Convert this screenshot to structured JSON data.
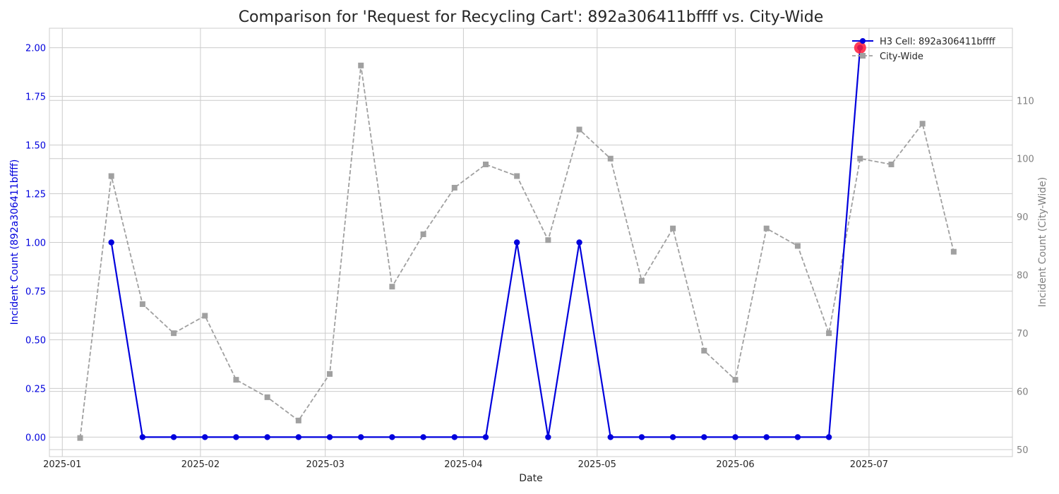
{
  "chart_data": {
    "type": "line",
    "title": "Comparison for 'Request for Recycling Cart': 892a306411bffff vs. City-Wide",
    "xlabel": "Date",
    "ylabel_left": "Incident Count (892a306411bffff)",
    "ylabel_right": "Incident Count (City-Wide)",
    "x_ticks": [
      "2025-01",
      "2025-02",
      "2025-03",
      "2025-04",
      "2025-05",
      "2025-06",
      "2025-07"
    ],
    "y_left_ticks": [
      "0.00",
      "0.25",
      "0.50",
      "0.75",
      "1.00",
      "1.25",
      "1.50",
      "1.75",
      "2.00"
    ],
    "y_right_ticks": [
      "50",
      "60",
      "70",
      "80",
      "90",
      "100",
      "110"
    ],
    "ylim_left": [
      -0.1,
      2.1
    ],
    "ylim_right": [
      48.8,
      122.4
    ],
    "grid": true,
    "legend_position": "top-right",
    "colors": {
      "h3": "#0000dd",
      "city": "#a0a0a0",
      "highlight": "#ff1a3a",
      "left_axis": "#0000dd",
      "right_axis": "#808080"
    },
    "series": [
      {
        "name": "H3 Cell: 892a306411bffff",
        "axis": "left",
        "style": "solid-circle",
        "x": [
          "2025-01-12",
          "2025-01-19",
          "2025-01-26",
          "2025-02-02",
          "2025-02-09",
          "2025-02-16",
          "2025-02-23",
          "2025-03-02",
          "2025-03-09",
          "2025-03-16",
          "2025-03-23",
          "2025-03-30",
          "2025-04-06",
          "2025-04-13",
          "2025-04-20",
          "2025-04-27",
          "2025-05-04",
          "2025-05-11",
          "2025-05-18",
          "2025-05-25",
          "2025-06-01",
          "2025-06-08",
          "2025-06-15",
          "2025-06-22",
          "2025-06-29"
        ],
        "values": [
          1,
          0,
          0,
          0,
          0,
          0,
          0,
          0,
          0,
          0,
          0,
          0,
          0,
          1,
          0,
          1,
          0,
          0,
          0,
          0,
          0,
          0,
          0,
          0,
          2
        ]
      },
      {
        "name": "City-Wide",
        "axis": "right",
        "style": "dashed-square",
        "x": [
          "2025-01-05",
          "2025-01-12",
          "2025-01-19",
          "2025-01-26",
          "2025-02-02",
          "2025-02-09",
          "2025-02-16",
          "2025-02-23",
          "2025-03-02",
          "2025-03-09",
          "2025-03-16",
          "2025-03-23",
          "2025-03-30",
          "2025-04-06",
          "2025-04-13",
          "2025-04-20",
          "2025-04-27",
          "2025-05-04",
          "2025-05-11",
          "2025-05-18",
          "2025-05-25",
          "2025-06-01",
          "2025-06-08",
          "2025-06-15",
          "2025-06-22",
          "2025-06-29",
          "2025-07-06",
          "2025-07-13",
          "2025-07-20"
        ],
        "values": [
          52,
          97,
          75,
          70,
          73,
          62,
          59,
          55,
          63,
          116,
          78,
          87,
          95,
          99,
          97,
          86,
          105,
          100,
          79,
          88,
          67,
          62,
          88,
          85,
          70,
          100,
          99,
          106,
          84
        ]
      }
    ],
    "highlight": {
      "series": "H3 Cell: 892a306411bffff",
      "x": "2025-06-29",
      "value": 2
    }
  }
}
